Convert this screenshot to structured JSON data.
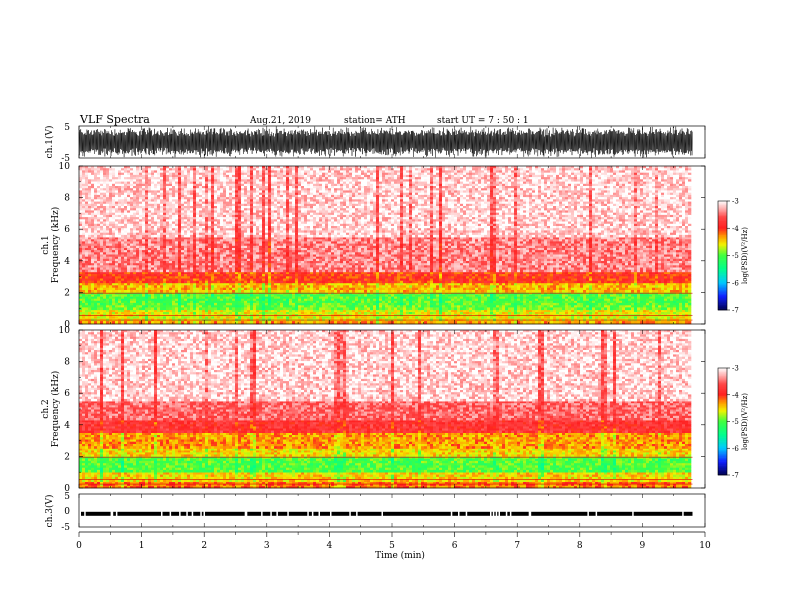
{
  "header": {
    "title": "VLF  Spectra",
    "date": "Aug.21, 2019",
    "station": "station= ATH",
    "start": "start  UT  =    7  : 50 : 1"
  },
  "colors": {
    "white": "#ffffff",
    "pink": "#ffb8b8",
    "red": "#ff2020",
    "darkred": "#e00000",
    "orange": "#ff9a00",
    "yellow": "#f2f200",
    "green": "#40ff40",
    "cyan": "#00e0ff",
    "blue": "#1020ff",
    "navy": "#000060"
  },
  "chart_data": [
    {
      "type": "line",
      "name": "ch1-waveform",
      "ylabel": "ch.1(V)",
      "ylim": [
        -5,
        5
      ],
      "yticks": [
        "5",
        "-5"
      ],
      "xlim": [
        0,
        10
      ],
      "x_max_data": 9.8,
      "amplitude": 5
    },
    {
      "type": "heatmap",
      "name": "ch1-spectrogram",
      "ylabel_top": "ch.1",
      "ylabel": "Frequency  (kHz)",
      "ylim": [
        0,
        10
      ],
      "yticks": [
        "0",
        "2",
        "4",
        "6",
        "8",
        "10"
      ],
      "xlim": [
        0,
        10
      ],
      "x_max_data": 9.8,
      "colorbar": {
        "label": "log(PSD)(V²/Hz)",
        "range": [
          -7,
          -3
        ],
        "ticks": [
          "-3",
          "-4",
          "-5",
          "-6",
          "-7"
        ]
      },
      "bands": [
        {
          "fmin": 0.0,
          "fmax": 0.2,
          "level": -4.3
        },
        {
          "fmin": 0.2,
          "fmax": 0.9,
          "level": -4.6
        },
        {
          "fmin": 0.9,
          "fmax": 1.2,
          "level": -4.9
        },
        {
          "fmin": 1.2,
          "fmax": 2.0,
          "level": -5.0
        },
        {
          "fmin": 2.0,
          "fmax": 2.6,
          "level": -4.4
        },
        {
          "fmin": 2.6,
          "fmax": 3.3,
          "level": -4.0
        },
        {
          "fmin": 3.3,
          "fmax": 5.5,
          "level": -3.4
        },
        {
          "fmin": 5.5,
          "fmax": 10.0,
          "level": -3.15
        }
      ]
    },
    {
      "type": "heatmap",
      "name": "ch2-spectrogram",
      "ylabel_top": "ch.2",
      "ylabel": "Frequency  (kHz)",
      "ylim": [
        0,
        10
      ],
      "yticks": [
        "0",
        "2",
        "4",
        "6",
        "8",
        "10"
      ],
      "xlim": [
        0,
        10
      ],
      "x_max_data": 9.8,
      "colorbar": {
        "label": "log(PSD)(V²/Hz)",
        "range": [
          -7,
          -3
        ],
        "ticks": [
          "-3",
          "-4",
          "-5",
          "-6",
          "-7"
        ]
      },
      "bands": [
        {
          "fmin": 0.0,
          "fmax": 0.4,
          "level": -4.2
        },
        {
          "fmin": 0.4,
          "fmax": 1.0,
          "level": -4.5
        },
        {
          "fmin": 1.0,
          "fmax": 2.0,
          "level": -5.0
        },
        {
          "fmin": 2.0,
          "fmax": 2.5,
          "level": -4.5
        },
        {
          "fmin": 2.5,
          "fmax": 3.5,
          "level": -4.3
        },
        {
          "fmin": 3.5,
          "fmax": 4.3,
          "level": -3.8
        },
        {
          "fmin": 4.3,
          "fmax": 5.5,
          "level": -3.5
        },
        {
          "fmin": 5.5,
          "fmax": 10.0,
          "level": -3.15
        }
      ]
    },
    {
      "type": "line",
      "name": "ch3-waveform",
      "ylabel": "ch.3(V)",
      "ylim": [
        -5,
        5
      ],
      "yticks": [
        "5",
        "0",
        "-5"
      ],
      "xlim": [
        0,
        10
      ],
      "x_max_data": 9.8,
      "level": -1.0
    }
  ],
  "xaxis": {
    "label": "Time  (min)",
    "ticks": [
      "0",
      "1",
      "2",
      "3",
      "4",
      "5",
      "6",
      "7",
      "8",
      "9",
      "10"
    ]
  }
}
